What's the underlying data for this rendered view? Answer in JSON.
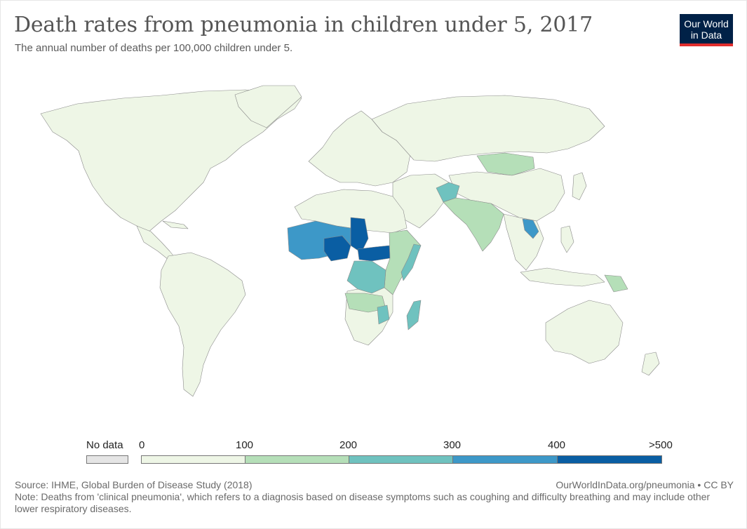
{
  "header": {
    "title": "Death rates from pneumonia in children under 5, 2017",
    "subtitle": "The annual number of deaths per 100,000 children under 5."
  },
  "logo": {
    "line1": "Our World",
    "line2": "in Data"
  },
  "legend": {
    "no_data_label": "No data",
    "no_data_color": "#e5e5e5",
    "tick_labels": [
      "0",
      "100",
      "200",
      "300",
      "400",
      ">500"
    ],
    "bins": [
      {
        "range": [
          0,
          100
        ],
        "color": "#eef6e6"
      },
      {
        "range": [
          100,
          200
        ],
        "color": "#b5dfb8"
      },
      {
        "range": [
          200,
          300
        ],
        "color": "#6fc2bf"
      },
      {
        "range": [
          300,
          400
        ],
        "color": "#3d98c8"
      },
      {
        "range": [
          400,
          500
        ],
        "color": "#0a5ea3"
      }
    ]
  },
  "map": {
    "projection": "robinson",
    "default_category": "0-100",
    "region_categories": [
      {
        "region": "Sahel / West Africa",
        "category": "300-400"
      },
      {
        "region": "Nigeria",
        "category": ">500"
      },
      {
        "region": "Chad",
        "category": ">500"
      },
      {
        "region": "Central African Republic / South Sudan",
        "category": ">500"
      },
      {
        "region": "DR Congo",
        "category": "200-300"
      },
      {
        "region": "Somalia",
        "category": "200-300"
      },
      {
        "region": "Madagascar",
        "category": "200-300"
      },
      {
        "region": "Afghanistan",
        "category": "200-300"
      },
      {
        "region": "Laos",
        "category": "300-400"
      },
      {
        "region": "India / South Asia",
        "category": "100-200"
      },
      {
        "region": "Mongolia",
        "category": "100-200"
      },
      {
        "region": "East Africa",
        "category": "100-200"
      },
      {
        "region": "Papua New Guinea",
        "category": "100-200"
      }
    ]
  },
  "footer": {
    "source": "Source: IHME, Global Burden of Disease Study (2018)",
    "credit": "OurWorldInData.org/pneumonia • CC BY",
    "note": "Note: Deaths from 'clinical pneumonia', which refers to a diagnosis based on disease symptoms such as coughing and difficulty breathing and may include other lower respiratory diseases."
  }
}
